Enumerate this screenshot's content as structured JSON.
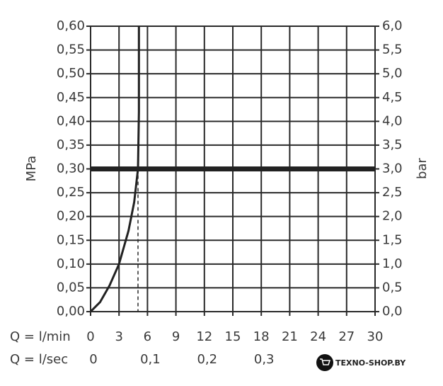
{
  "chart_data": {
    "type": "line",
    "ylabel": "MPa",
    "y2label": "bar",
    "xlabel": "Q = l/min",
    "x2label": "Q = l/sec",
    "x": [
      0,
      1,
      2,
      3,
      4,
      4.6,
      5,
      5.1,
      5.1
    ],
    "values": [
      0,
      0.02,
      0.055,
      0.1,
      0.17,
      0.23,
      0.3,
      0.42,
      0.6
    ],
    "color": "#222222",
    "reference_y": 0.3,
    "reference_x": 5,
    "xlim": [
      0,
      30
    ],
    "xticks": [
      0,
      3,
      6,
      9,
      12,
      15,
      18,
      21,
      24,
      27,
      30
    ],
    "x2lim": [
      0,
      0.5
    ],
    "x2ticks": [
      0,
      {
        "value": 0.1,
        "label": "0,1"
      },
      {
        "value": 0.2,
        "label": "0,2"
      },
      {
        "value": 0.3,
        "label": "0,3"
      }
    ],
    "ylim": [
      0,
      0.6
    ],
    "yticks": [
      {
        "value": 0,
        "label": "0,00"
      },
      {
        "value": 0.05,
        "label": "0,05"
      },
      {
        "value": 0.1,
        "label": "0,10"
      },
      {
        "value": 0.15,
        "label": "0,15"
      },
      {
        "value": 0.2,
        "label": "0,20"
      },
      {
        "value": 0.25,
        "label": "0,25"
      },
      {
        "value": 0.3,
        "label": "0,30"
      },
      {
        "value": 0.35,
        "label": "0,35"
      },
      {
        "value": 0.4,
        "label": "0,40"
      },
      {
        "value": 0.45,
        "label": "0,45"
      },
      {
        "value": 0.5,
        "label": "0,50"
      },
      {
        "value": 0.55,
        "label": "0,55"
      },
      {
        "value": 0.6,
        "label": "0,60"
      }
    ],
    "y2lim": [
      0,
      6
    ],
    "y2ticks": [
      {
        "value": 0,
        "label": "0,0"
      },
      {
        "value": 0.5,
        "label": "0,5"
      },
      {
        "value": 1,
        "label": "1,0"
      },
      {
        "value": 1.5,
        "label": "1,5"
      },
      {
        "value": 2,
        "label": "2,0"
      },
      {
        "value": 2.5,
        "label": "2,5"
      },
      {
        "value": 3,
        "label": "3,0"
      },
      {
        "value": 3.5,
        "label": "3,5"
      },
      {
        "value": 4,
        "label": "4,0"
      },
      {
        "value": 4.5,
        "label": "4,5"
      },
      {
        "value": 5,
        "label": "5,0"
      },
      {
        "value": 5.5,
        "label": "5,5"
      },
      {
        "value": 6,
        "label": "6,0"
      }
    ],
    "grid": true
  },
  "watermark": "TEXNO-SHOP.BY"
}
